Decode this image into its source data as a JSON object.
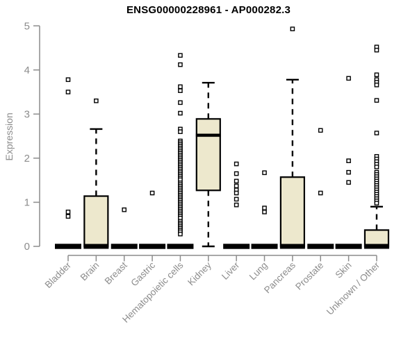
{
  "chart_data": {
    "type": "boxplot",
    "title": "ENSG00000228961 - AP000282.3",
    "ylabel": "Expression",
    "xlabel": "",
    "ylim": [
      0,
      5
    ],
    "yticks": [
      0,
      1,
      2,
      3,
      4,
      5
    ],
    "grid": false,
    "legend": "none",
    "categories": [
      "Bladder",
      "Brain",
      "Breast",
      "Gastric",
      "Hematopoietic cells",
      "Kidney",
      "Liver",
      "Lung",
      "Pancreas",
      "Prostate",
      "Skin",
      "Unknown / Other"
    ],
    "boxes": [
      {
        "category": "Bladder",
        "q1": 0,
        "median": 0,
        "q3": 0,
        "whisker_low": 0,
        "whisker_high": 0,
        "outliers": [
          3.78,
          3.5,
          0.78,
          0.68
        ]
      },
      {
        "category": "Brain",
        "q1": 0,
        "median": 0,
        "q3": 1.14,
        "whisker_low": 0,
        "whisker_high": 2.66,
        "outliers": [
          3.3
        ]
      },
      {
        "category": "Breast",
        "q1": 0,
        "median": 0,
        "q3": 0,
        "whisker_low": 0,
        "whisker_high": 0,
        "outliers": [
          0.83
        ]
      },
      {
        "category": "Gastric",
        "q1": 0,
        "median": 0,
        "q3": 0,
        "whisker_low": 0,
        "whisker_high": 0,
        "outliers": [
          1.21
        ]
      },
      {
        "category": "Hematopoietic cells",
        "q1": 0,
        "median": 0,
        "q3": 0,
        "whisker_low": 0,
        "whisker_high": 0,
        "outliers": [
          4.33,
          4.12,
          3.62,
          3.53,
          3.26,
          3.02,
          2.66,
          2.6,
          2.39,
          2.35,
          2.31,
          2.27,
          2.23,
          2.19,
          2.15,
          2.11,
          2.07,
          2.03,
          1.99,
          1.95,
          1.91,
          1.87,
          1.83,
          1.79,
          1.75,
          1.71,
          1.67,
          1.63,
          1.59,
          1.55,
          1.51,
          1.44,
          1.4,
          1.36,
          1.32,
          1.28,
          1.24,
          1.2,
          1.16,
          1.12,
          1.08,
          1.04,
          1.0,
          0.96,
          0.92,
          0.88,
          0.84,
          0.8,
          0.76,
          0.72,
          0.68,
          0.64,
          0.57,
          0.53,
          0.49,
          0.45,
          0.41,
          0.37,
          0.33,
          0.28
        ]
      },
      {
        "category": "Kidney",
        "q1": 1.27,
        "median": 2.52,
        "q3": 2.89,
        "whisker_low": 0,
        "whisker_high": 3.71,
        "outliers": []
      },
      {
        "category": "Liver",
        "q1": 0,
        "median": 0,
        "q3": 0,
        "whisker_low": 0,
        "whisker_high": 0,
        "outliers": [
          1.87,
          1.65,
          1.48,
          1.37,
          1.28,
          1.21,
          1.07,
          0.94
        ]
      },
      {
        "category": "Lung",
        "q1": 0,
        "median": 0,
        "q3": 0,
        "whisker_low": 0,
        "whisker_high": 0,
        "outliers": [
          1.67,
          0.87,
          0.78
        ]
      },
      {
        "category": "Pancreas",
        "q1": 0,
        "median": 0,
        "q3": 1.57,
        "whisker_low": 0,
        "whisker_high": 3.78,
        "outliers": [
          4.93
        ]
      },
      {
        "category": "Prostate",
        "q1": 0,
        "median": 0,
        "q3": 0,
        "whisker_low": 0,
        "whisker_high": 0,
        "outliers": [
          2.63,
          1.21
        ]
      },
      {
        "category": "Skin",
        "q1": 0,
        "median": 0,
        "q3": 0,
        "whisker_low": 0,
        "whisker_high": 0,
        "outliers": [
          3.81,
          1.94,
          1.68,
          1.45
        ]
      },
      {
        "category": "Unknown / Other",
        "q1": 0,
        "median": 0,
        "q3": 0.37,
        "whisker_low": 0,
        "whisker_high": 0.9,
        "outliers": [
          4.52,
          4.45,
          3.89,
          3.78,
          3.72,
          3.66,
          3.31,
          2.57,
          2.04,
          1.98,
          1.92,
          1.86,
          1.8,
          1.68,
          1.63,
          1.58,
          1.53,
          1.48,
          1.43,
          1.38,
          1.33,
          1.28,
          1.23,
          1.18,
          1.13,
          1.08,
          1.03,
          0.98
        ]
      }
    ],
    "colors": {
      "box_fill": "#EDE8CD",
      "box_stroke": "#000000",
      "median": "#000000",
      "whisker": "#000000",
      "outlier_fill": "#FFFFFF",
      "outlier_stroke": "#000000",
      "axis": "#8C8C8C",
      "tick_label": "#8C8C8C",
      "title": "#000000"
    }
  }
}
